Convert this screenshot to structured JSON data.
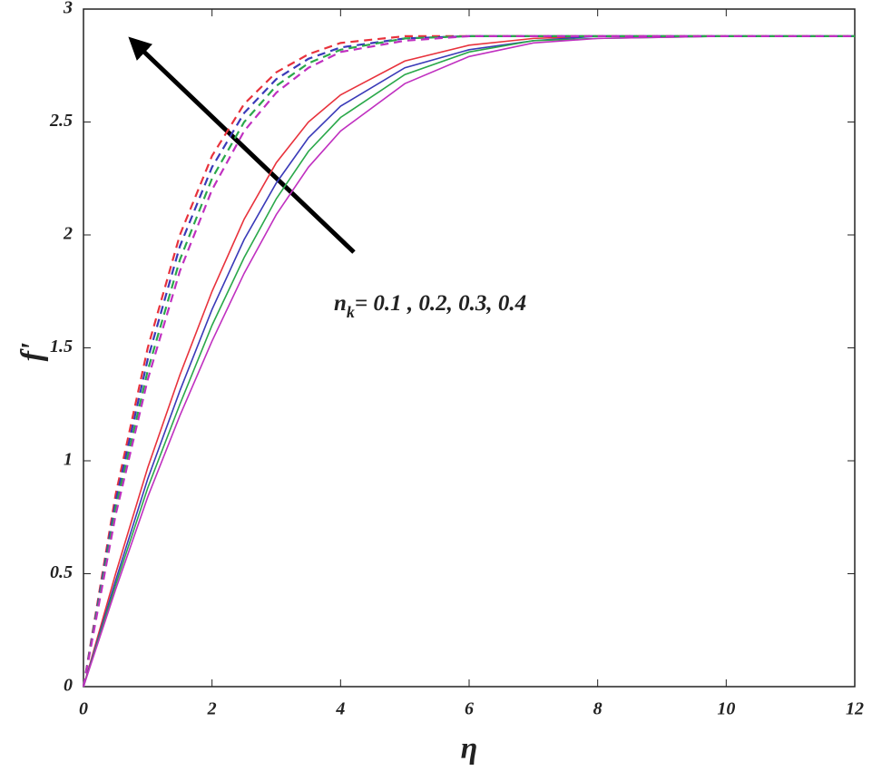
{
  "chart_data": {
    "type": "line",
    "xlabel": "η",
    "ylabel": "f'",
    "annotation": {
      "base": "n",
      "subscript": "k",
      "text": "= 0.1 , 0.2, 0.3, 0.4"
    },
    "x": [
      0,
      0.5,
      1,
      1.5,
      2,
      2.5,
      3,
      3.5,
      4,
      5,
      6,
      7,
      8,
      10,
      12
    ],
    "series": [
      {
        "color": "#e8323c",
        "dashed": false,
        "values": [
          0,
          0.5,
          0.97,
          1.38,
          1.75,
          2.07,
          2.32,
          2.5,
          2.62,
          2.77,
          2.84,
          2.87,
          2.88,
          2.88,
          2.88
        ]
      },
      {
        "color": "#3a3ab8",
        "dashed": false,
        "values": [
          0,
          0.47,
          0.92,
          1.31,
          1.67,
          1.98,
          2.23,
          2.43,
          2.57,
          2.74,
          2.82,
          2.86,
          2.88,
          2.88,
          2.88
        ]
      },
      {
        "color": "#2aa84a",
        "dashed": false,
        "values": [
          0,
          0.45,
          0.88,
          1.25,
          1.6,
          1.9,
          2.16,
          2.37,
          2.52,
          2.71,
          2.81,
          2.86,
          2.87,
          2.88,
          2.88
        ]
      },
      {
        "color": "#c030c0",
        "dashed": false,
        "values": [
          0,
          0.43,
          0.84,
          1.2,
          1.53,
          1.83,
          2.09,
          2.3,
          2.46,
          2.67,
          2.79,
          2.85,
          2.87,
          2.88,
          2.88
        ]
      },
      {
        "color": "#e8323c",
        "dashed": true,
        "values": [
          0,
          0.85,
          1.5,
          2.0,
          2.35,
          2.58,
          2.72,
          2.8,
          2.85,
          2.88,
          2.88,
          2.88,
          2.88,
          2.88,
          2.88
        ]
      },
      {
        "color": "#3a3ab8",
        "dashed": true,
        "values": [
          0,
          0.82,
          1.45,
          1.95,
          2.3,
          2.54,
          2.69,
          2.78,
          2.83,
          2.87,
          2.88,
          2.88,
          2.88,
          2.88,
          2.88
        ]
      },
      {
        "color": "#2aa84a",
        "dashed": true,
        "values": [
          0,
          0.79,
          1.4,
          1.89,
          2.25,
          2.5,
          2.66,
          2.76,
          2.82,
          2.87,
          2.88,
          2.88,
          2.88,
          2.88,
          2.88
        ]
      },
      {
        "color": "#c030c0",
        "dashed": true,
        "values": [
          0,
          0.76,
          1.36,
          1.84,
          2.2,
          2.46,
          2.63,
          2.74,
          2.81,
          2.86,
          2.88,
          2.88,
          2.88,
          2.88,
          2.88
        ]
      }
    ],
    "xlim": [
      0,
      12
    ],
    "xticks": [
      0,
      2,
      4,
      6,
      8,
      10,
      12
    ],
    "ylim": [
      0,
      3
    ],
    "yticks": [
      0,
      0.5,
      1,
      1.5,
      2,
      2.5,
      3
    ]
  }
}
